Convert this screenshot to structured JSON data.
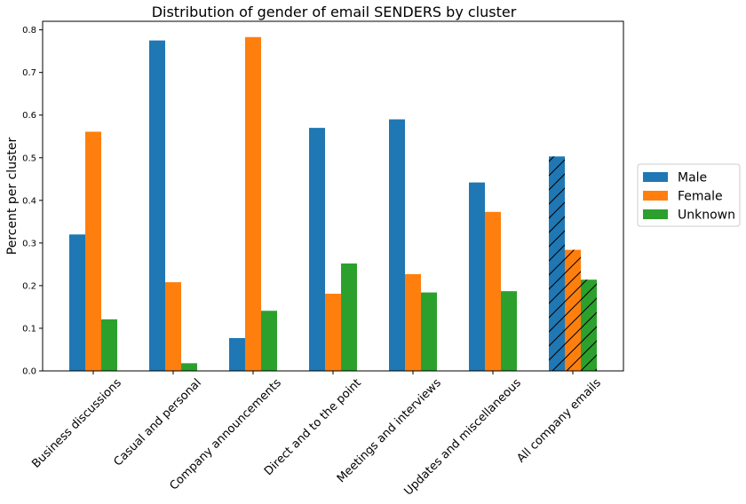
{
  "chart_data": {
    "type": "bar",
    "title": "Distribution of gender of email SENDERS by cluster",
    "xlabel": "",
    "ylabel": "Percent per cluster",
    "ylim": [
      0,
      0.82
    ],
    "yticks": [
      "0.0",
      "0.1",
      "0.2",
      "0.3",
      "0.4",
      "0.5",
      "0.6",
      "0.7",
      "0.8"
    ],
    "categories": [
      "Business discussions",
      "Casual and personal",
      "Company announcements",
      "Direct and to the point",
      "Meetings and interviews",
      "Updates and miscellaneous",
      "All company emails"
    ],
    "series": [
      {
        "name": "Male",
        "color": "#1f77b4",
        "values": [
          0.32,
          0.775,
          0.077,
          0.57,
          0.59,
          0.442,
          0.503
        ]
      },
      {
        "name": "Female",
        "color": "#ff7f0e",
        "values": [
          0.561,
          0.208,
          0.783,
          0.181,
          0.227,
          0.373,
          0.284
        ]
      },
      {
        "name": "Unknown",
        "color": "#2ca02c",
        "values": [
          0.121,
          0.018,
          0.141,
          0.252,
          0.184,
          0.187,
          0.214
        ]
      }
    ],
    "hatched_category": "All company emails",
    "legend_position": "center-right",
    "grid": false
  }
}
